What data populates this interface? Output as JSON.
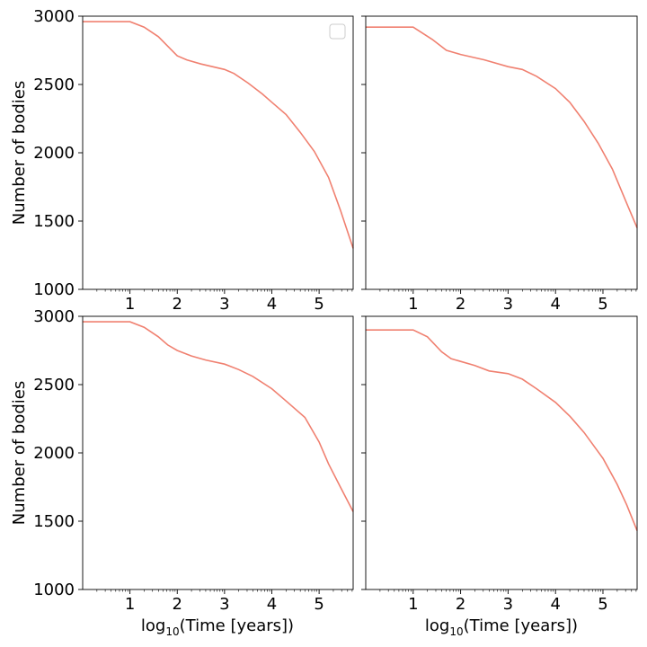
{
  "figure": {
    "ylabel": "Number of bodies",
    "xlabel_prefix": "log",
    "xlabel_sub": "10",
    "xlabel_suffix": "(Time [years])"
  },
  "chart_data": [
    {
      "type": "line",
      "panel": "top-left",
      "xlim": [
        0,
        5.72
      ],
      "ylim": [
        1000,
        3000
      ],
      "xticks": [
        "1",
        "2",
        "3",
        "4",
        "5"
      ],
      "yticks": [
        "1000",
        "1500",
        "2000",
        "2500",
        "3000"
      ],
      "xlabel": "",
      "ylabel": "Number of bodies",
      "legend": "top-right (empty)",
      "line_color": "#f08070",
      "series": [
        {
          "x": [
            0,
            1.0,
            1.3,
            1.6,
            1.8,
            2.0,
            2.2,
            2.5,
            3.0,
            3.2,
            3.5,
            3.8,
            4.0,
            4.3,
            4.6,
            4.9,
            5.2,
            5.45,
            5.72
          ],
          "y": [
            2960,
            2960,
            2920,
            2850,
            2780,
            2710,
            2680,
            2650,
            2610,
            2580,
            2510,
            2430,
            2370,
            2280,
            2150,
            2010,
            1820,
            1580,
            1300
          ]
        }
      ]
    },
    {
      "type": "line",
      "panel": "top-right",
      "xlim": [
        0,
        5.72
      ],
      "ylim": [
        1000,
        3000
      ],
      "xticks": [
        "1",
        "2",
        "3",
        "4",
        "5"
      ],
      "yticks": [],
      "xlabel": "",
      "ylabel": "",
      "line_color": "#f08070",
      "series": [
        {
          "x": [
            0,
            1.0,
            1.4,
            1.7,
            2.0,
            2.5,
            3.0,
            3.3,
            3.6,
            4.0,
            4.3,
            4.6,
            4.9,
            5.2,
            5.5,
            5.72
          ],
          "y": [
            2920,
            2920,
            2830,
            2750,
            2720,
            2680,
            2630,
            2610,
            2560,
            2470,
            2370,
            2230,
            2070,
            1880,
            1630,
            1450
          ]
        }
      ]
    },
    {
      "type": "line",
      "panel": "bottom-left",
      "xlim": [
        0,
        5.72
      ],
      "ylim": [
        1000,
        3000
      ],
      "xticks": [
        "1",
        "2",
        "3",
        "4",
        "5"
      ],
      "yticks": [
        "1000",
        "1500",
        "2000",
        "2500",
        "3000"
      ],
      "xlabel": "log10(Time [years])",
      "ylabel": "Number of bodies",
      "line_color": "#f08070",
      "series": [
        {
          "x": [
            0,
            1.0,
            1.3,
            1.6,
            1.8,
            2.0,
            2.3,
            2.6,
            3.0,
            3.3,
            3.6,
            4.0,
            4.3,
            4.7,
            5.0,
            5.2,
            5.45,
            5.72
          ],
          "y": [
            2960,
            2960,
            2920,
            2850,
            2790,
            2750,
            2710,
            2680,
            2650,
            2610,
            2560,
            2470,
            2380,
            2260,
            2080,
            1920,
            1750,
            1570
          ]
        }
      ]
    },
    {
      "type": "line",
      "panel": "bottom-right",
      "xlim": [
        0,
        5.72
      ],
      "ylim": [
        1000,
        3000
      ],
      "xticks": [
        "1",
        "2",
        "3",
        "4",
        "5"
      ],
      "yticks": [],
      "xlabel": "log10(Time [years])",
      "ylabel": "",
      "line_color": "#f08070",
      "series": [
        {
          "x": [
            0,
            1.0,
            1.3,
            1.6,
            1.8,
            2.0,
            2.3,
            2.6,
            3.0,
            3.3,
            3.6,
            4.0,
            4.3,
            4.6,
            5.0,
            5.3,
            5.5,
            5.72
          ],
          "y": [
            2900,
            2900,
            2850,
            2740,
            2690,
            2670,
            2640,
            2600,
            2580,
            2540,
            2470,
            2370,
            2270,
            2150,
            1960,
            1770,
            1620,
            1430
          ]
        }
      ]
    }
  ]
}
